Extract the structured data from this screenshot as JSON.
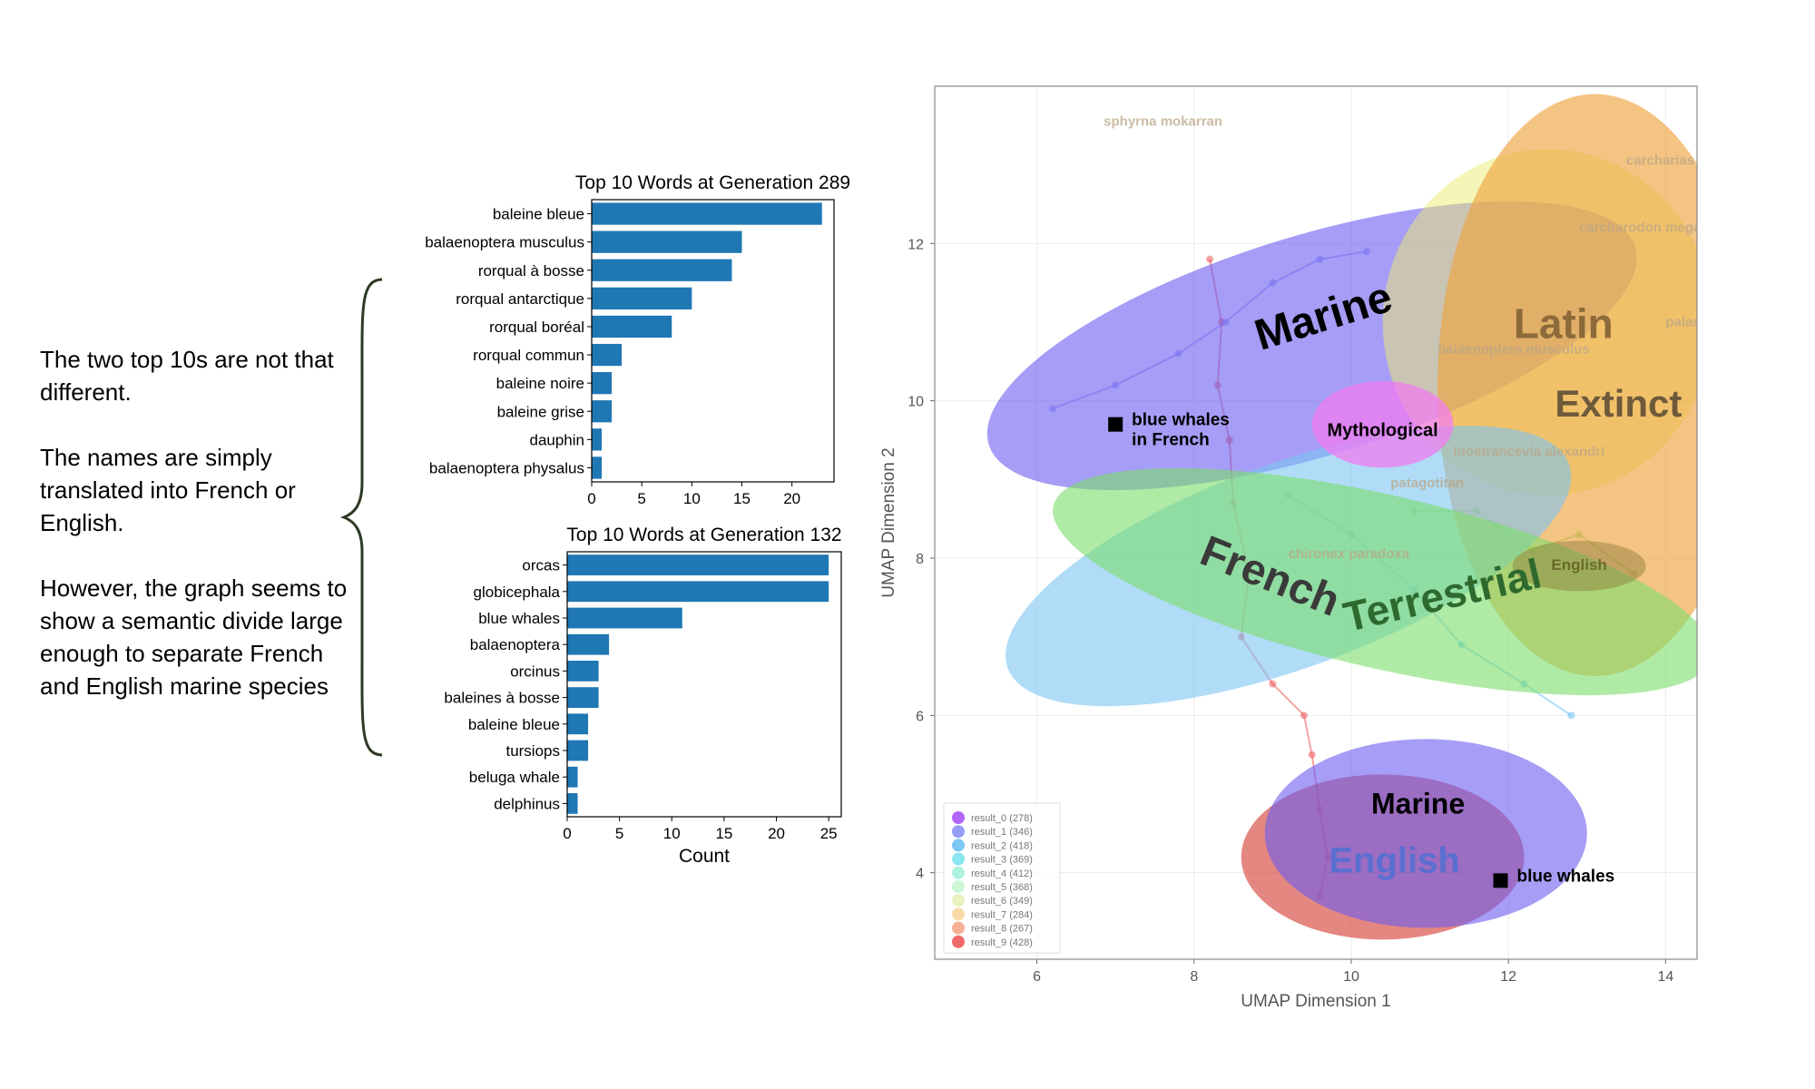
{
  "annotation": {
    "paragraphs": [
      "The two top 10s are not that different.",
      "The names are simply translated into French or English.",
      "However, the graph seems to show a semantic divide large enough to separate French and English marine species"
    ]
  },
  "chart_data": [
    {
      "type": "bar",
      "orientation": "horizontal",
      "title": "Top 10 Words at Generation 289",
      "xlabel": "",
      "categories": [
        "baleine bleue",
        "balaenoptera musculus",
        "rorqual à bosse",
        "rorqual antarctique",
        "rorqual boréal",
        "rorqual commun",
        "baleine noire",
        "baleine grise",
        "dauphin",
        "balaenoptera physalus"
      ],
      "values": [
        23,
        15,
        14,
        10,
        8,
        3,
        2,
        2,
        1,
        1
      ],
      "xticks": [
        0,
        5,
        10,
        15,
        20
      ],
      "xlim": [
        0,
        24.2
      ],
      "color": "#1f77b4"
    },
    {
      "type": "bar",
      "orientation": "horizontal",
      "title": "Top 10 Words at Generation 132",
      "xlabel": "Count",
      "categories": [
        "orcas",
        "globicephala",
        "blue whales",
        "balaenoptera",
        "orcinus",
        "baleines à bosse",
        "baleine bleue",
        "tursiops",
        "beluga whale",
        "delphinus"
      ],
      "values": [
        25,
        25,
        11,
        4,
        3,
        3,
        2,
        2,
        1,
        1
      ],
      "xticks": [
        0,
        5,
        10,
        15,
        20,
        25
      ],
      "xlim": [
        0,
        26.2
      ],
      "color": "#1f77b4"
    },
    {
      "type": "scatter",
      "xlabel": "UMAP Dimension 1",
      "ylabel": "UMAP Dimension 2",
      "xlim": [
        4.7,
        14.4
      ],
      "ylim": [
        2.9,
        14.0
      ],
      "xticks": [
        6,
        8,
        10,
        12,
        14
      ],
      "yticks": [
        4,
        6,
        8,
        10,
        12
      ],
      "grid": true,
      "legend_position": "bottom-left",
      "series": [
        {
          "name": "result_0 (278)",
          "color": "#a855f7"
        },
        {
          "name": "result_1 (346)",
          "color": "#8b93f5"
        },
        {
          "name": "result_2 (418)",
          "color": "#6ec1f2"
        },
        {
          "name": "result_3 (369)",
          "color": "#7ee3f0"
        },
        {
          "name": "result_4 (412)",
          "color": "#a4f2dc"
        },
        {
          "name": "result_5 (368)",
          "color": "#c8f5cf"
        },
        {
          "name": "result_6 (349)",
          "color": "#e8f2b8"
        },
        {
          "name": "result_7 (284)",
          "color": "#f5d6a0"
        },
        {
          "name": "result_8 (267)",
          "color": "#f5a98a"
        },
        {
          "name": "result_9 (428)",
          "color": "#ee5a5a"
        }
      ],
      "regions": [
        {
          "label": "Marine",
          "cx": 9.5,
          "cy": 10.7,
          "rx": 4.3,
          "ry": 1.4,
          "angle": -17,
          "color": "#6b5cf0",
          "opacity": 0.6,
          "label_x": 9.7,
          "label_y": 10.9,
          "label_size": 48,
          "label_color": "#000000",
          "label_angle": -17
        },
        {
          "label": "Latin",
          "cx": 12.5,
          "cy": 11.0,
          "rx": 2.1,
          "ry": 2.2,
          "angle": 0,
          "color": "#ecec70",
          "opacity": 0.5,
          "label_x": 12.7,
          "label_y": 10.8,
          "label_size": 46,
          "label_color": "#8d6a3a",
          "label_angle": 0
        },
        {
          "label": "Extinct",
          "cx": 13.1,
          "cy": 10.2,
          "rx": 2.0,
          "ry": 3.7,
          "angle": 0,
          "color": "#eea540",
          "opacity": 0.65,
          "label_x": 13.4,
          "label_y": 9.8,
          "label_size": 42,
          "label_color": "#6e5a3a",
          "label_angle": 0
        },
        {
          "label": "French",
          "cx": 9.2,
          "cy": 7.9,
          "rx": 3.8,
          "ry": 1.3,
          "angle": -20,
          "color": "#7cc4f2",
          "opacity": 0.6,
          "label_x": 8.9,
          "label_y": 7.6,
          "label_size": 48,
          "label_color": "#3a3a3a",
          "label_angle": 22
        },
        {
          "label": "Terrestrial",
          "cx": 10.4,
          "cy": 7.7,
          "rx": 4.3,
          "ry": 1.1,
          "angle": 13,
          "color": "#7bde6a",
          "opacity": 0.6,
          "label_x": 11.2,
          "label_y": 7.35,
          "label_size": 46,
          "label_color": "#2e6a2e",
          "label_angle": -13
        },
        {
          "label": "Mythological",
          "cx": 10.4,
          "cy": 9.7,
          "rx": 0.9,
          "ry": 0.55,
          "angle": 0,
          "color": "#f07cf0",
          "opacity": 0.75,
          "label_x": 10.4,
          "label_y": 9.55,
          "label_size": 20,
          "label_color": "#000000",
          "label_angle": 0
        },
        {
          "label": "English",
          "cx": 10.4,
          "cy": 4.2,
          "rx": 1.8,
          "ry": 1.05,
          "angle": 0,
          "color": "#d9544c",
          "opacity": 0.7,
          "label_x": 10.55,
          "label_y": 4.0,
          "label_size": 40,
          "label_color": "#5a6fd0",
          "label_angle": 0
        },
        {
          "label": "Marine",
          "cx": 10.95,
          "cy": 4.5,
          "rx": 2.05,
          "ry": 1.2,
          "angle": 0,
          "color": "#6b5cf0",
          "opacity": 0.6,
          "label_x": 10.85,
          "label_y": 4.75,
          "label_size": 32,
          "label_color": "#000000",
          "label_angle": 0
        },
        {
          "label": "English",
          "cx": 12.9,
          "cy": 7.9,
          "rx": 0.85,
          "ry": 0.32,
          "angle": 0,
          "color": "#8a7a3a",
          "opacity": 0.45,
          "label_x": 12.9,
          "label_y": 7.85,
          "label_size": 17,
          "label_color": "#6a6a2a",
          "label_angle": 0
        }
      ],
      "markers": [
        {
          "label": "blue whales in French",
          "label_lines": [
            "blue whales",
            "in French"
          ],
          "x": 7.0,
          "y": 9.7
        },
        {
          "label": "blue whales",
          "label_lines": [
            "blue whales"
          ],
          "x": 11.9,
          "y": 3.9
        }
      ],
      "faint_labels": [
        {
          "text": "sphyrna mokarran",
          "x": 6.85,
          "y": 13.5
        },
        {
          "text": "carcharias",
          "x": 13.5,
          "y": 13.0
        },
        {
          "text": "carcharodon megalodon",
          "x": 12.9,
          "y": 12.15
        },
        {
          "text": "palaeoloxodon antiquus",
          "x": 14.0,
          "y": 10.95
        },
        {
          "text": "balaenoptera musculus",
          "x": 11.1,
          "y": 10.6
        },
        {
          "text": "inostrancevia alexandri",
          "x": 11.3,
          "y": 9.3
        },
        {
          "text": "patagotitan",
          "x": 10.5,
          "y": 8.9
        },
        {
          "text": "chironex paradoxa",
          "x": 9.2,
          "y": 8.0
        }
      ]
    }
  ]
}
